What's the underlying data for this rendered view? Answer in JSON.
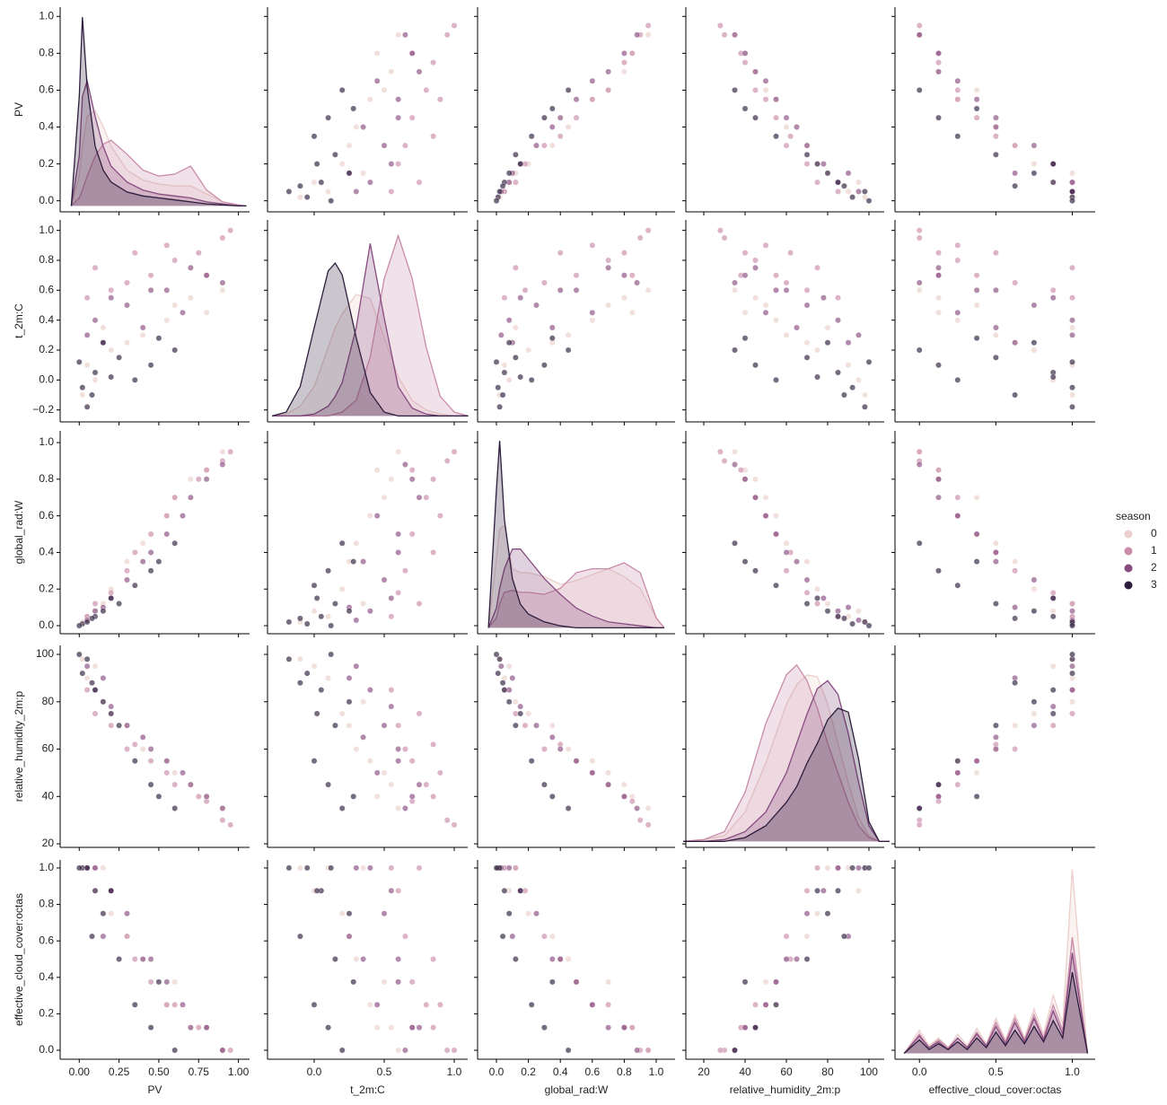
{
  "chart_data": {
    "type": "pairplot",
    "legend_title": "season",
    "variables": [
      {
        "name": "PV",
        "xlim": [
          -0.12,
          1.07
        ],
        "xticks": [
          {
            "value": 0,
            "label": "0.00"
          },
          {
            "value": 0.25,
            "label": "0.25"
          },
          {
            "value": 0.5,
            "label": "0.50"
          },
          {
            "value": 0.75,
            "label": "0.75"
          },
          {
            "value": 1,
            "label": "1.00"
          }
        ],
        "ylim": [
          -0.06,
          1.05
        ],
        "yticks": [
          {
            "value": 0,
            "label": "0.0"
          },
          {
            "value": 0.2,
            "label": "0.2"
          },
          {
            "value": 0.4,
            "label": "0.4"
          },
          {
            "value": 0.6,
            "label": "0.6"
          },
          {
            "value": 0.8,
            "label": "0.8"
          },
          {
            "value": 1,
            "label": "1.0"
          }
        ]
      },
      {
        "name": "t_2m:C",
        "xlim": [
          -0.333,
          1.096
        ],
        "xticks": [
          {
            "value": 0,
            "label": "0.0"
          },
          {
            "value": 0.5,
            "label": "0.5"
          },
          {
            "value": 1,
            "label": "1.0"
          }
        ],
        "ylim": [
          -0.28,
          1.07
        ],
        "yticks": [
          {
            "value": -0.2,
            "label": "−0.2"
          },
          {
            "value": 0,
            "label": "0.0"
          },
          {
            "value": 0.2,
            "label": "0.2"
          },
          {
            "value": 0.4,
            "label": "0.4"
          },
          {
            "value": 0.6,
            "label": "0.6"
          },
          {
            "value": 0.8,
            "label": "0.8"
          },
          {
            "value": 1,
            "label": "1.0"
          }
        ]
      },
      {
        "name": "global_rad:W",
        "xlim": [
          -0.118,
          1.118
        ],
        "xticks": [
          {
            "value": 0,
            "label": "0.0"
          },
          {
            "value": 0.2,
            "label": "0.2"
          },
          {
            "value": 0.4,
            "label": "0.4"
          },
          {
            "value": 0.6,
            "label": "0.6"
          },
          {
            "value": 0.8,
            "label": "0.8"
          },
          {
            "value": 1,
            "label": "1.0"
          }
        ],
        "ylim": [
          -0.044,
          1.064
        ],
        "yticks": [
          {
            "value": 0,
            "label": "0.0"
          },
          {
            "value": 0.2,
            "label": "0.2"
          },
          {
            "value": 0.4,
            "label": "0.4"
          },
          {
            "value": 0.6,
            "label": "0.6"
          },
          {
            "value": 0.8,
            "label": "0.8"
          },
          {
            "value": 1,
            "label": "1.0"
          }
        ]
      },
      {
        "name": "relative_humidity_2m:p",
        "xlim": [
          11.3,
          107.4
        ],
        "xticks": [
          20,
          40,
          60,
          80,
          100
        ],
        "ylim": [
          18.5,
          103.8
        ],
        "yticks": [
          20,
          40,
          60,
          80,
          100
        ]
      },
      {
        "name": "effective_cloud_cover:octas",
        "xlim": [
          -0.16,
          1.15
        ],
        "xticks": [
          {
            "value": 0,
            "label": "0.0"
          },
          {
            "value": 0.5,
            "label": "0.5"
          },
          {
            "value": 1,
            "label": "1.0"
          }
        ],
        "ylim": [
          -0.049,
          1.044
        ],
        "yticks": [
          {
            "value": 0,
            "label": "0.0"
          },
          {
            "value": 0.2,
            "label": "0.2"
          },
          {
            "value": 0.4,
            "label": "0.4"
          },
          {
            "value": 0.6,
            "label": "0.6"
          },
          {
            "value": 0.8,
            "label": "0.8"
          },
          {
            "value": 1,
            "label": "1.0"
          }
        ]
      }
    ],
    "series": [
      {
        "name": "0",
        "color": "#ebcfca",
        "values": [
          [
            0.05,
            0.1,
            0.05,
            90,
            1.0
          ],
          [
            0.4,
            0.3,
            0.45,
            60,
            0.5
          ],
          [
            0.7,
            0.55,
            0.8,
            45,
            0.125
          ],
          [
            0.2,
            0.2,
            0.2,
            75,
            0.75
          ],
          [
            0.9,
            0.6,
            0.95,
            35,
            0.0
          ],
          [
            0.55,
            0.4,
            0.6,
            55,
            0.25
          ],
          [
            0.1,
            0.0,
            0.08,
            95,
            0.875
          ],
          [
            0.3,
            0.25,
            0.35,
            70,
            0.625
          ],
          [
            0.8,
            0.45,
            0.85,
            40,
            0.125
          ],
          [
            0.15,
            0.35,
            0.12,
            80,
            1.0
          ],
          [
            0.6,
            0.5,
            0.7,
            50,
            0.375
          ],
          [
            0.02,
            -0.1,
            0.02,
            98,
            1.0
          ]
        ]
      },
      {
        "name": "1",
        "color": "#c98ba9",
        "values": [
          [
            0.6,
            0.8,
            0.7,
            45,
            0.25
          ],
          [
            0.9,
            0.95,
            0.9,
            30,
            0.0
          ],
          [
            0.3,
            0.65,
            0.3,
            60,
            0.625
          ],
          [
            0.05,
            0.55,
            0.05,
            85,
            1.0
          ],
          [
            0.75,
            0.85,
            0.8,
            40,
            0.125
          ],
          [
            0.45,
            0.7,
            0.5,
            55,
            0.375
          ],
          [
            0.95,
            1.0,
            0.95,
            28,
            0.0
          ],
          [
            0.2,
            0.6,
            0.18,
            70,
            0.875
          ],
          [
            0.55,
            0.9,
            0.6,
            50,
            0.25
          ],
          [
            0.1,
            0.75,
            0.12,
            75,
            1.0
          ],
          [
            0.8,
            0.7,
            0.85,
            38,
            0.125
          ],
          [
            0.35,
            0.85,
            0.4,
            62,
            0.5
          ]
        ]
      },
      {
        "name": "2",
        "color": "#874b80",
        "values": [
          [
            0.1,
            0.4,
            0.08,
            85,
            1.0
          ],
          [
            0.3,
            0.5,
            0.25,
            70,
            0.75
          ],
          [
            0.55,
            0.6,
            0.5,
            55,
            0.375
          ],
          [
            0.8,
            0.7,
            0.8,
            40,
            0.125
          ],
          [
            0.05,
            0.3,
            0.03,
            95,
            1.0
          ],
          [
            0.65,
            0.45,
            0.6,
            50,
            0.25
          ],
          [
            0.2,
            0.55,
            0.15,
            78,
            0.875
          ],
          [
            0.4,
            0.35,
            0.35,
            65,
            0.5
          ],
          [
            0.9,
            0.65,
            0.88,
            35,
            0.0
          ],
          [
            0.15,
            0.25,
            0.1,
            90,
            0.625
          ],
          [
            0.7,
            0.75,
            0.7,
            45,
            0.125
          ],
          [
            0.45,
            0.6,
            0.4,
            60,
            0.5
          ]
        ]
      },
      {
        "name": "3",
        "color": "#2c1d3c",
        "values": [
          [
            0.02,
            -0.05,
            0.01,
            92,
            1.0
          ],
          [
            0.1,
            0.05,
            0.05,
            85,
            0.875
          ],
          [
            0.25,
            0.15,
            0.12,
            70,
            0.5
          ],
          [
            0.45,
            0.1,
            0.3,
            45,
            0.125
          ],
          [
            0.6,
            0.2,
            0.45,
            35,
            0.0
          ],
          [
            0.05,
            -0.18,
            0.02,
            98,
            1.0
          ],
          [
            0.15,
            0.25,
            0.08,
            80,
            0.75
          ],
          [
            0.35,
            0.0,
            0.22,
            55,
            0.25
          ],
          [
            0.0,
            0.12,
            0.0,
            100,
            1.0
          ],
          [
            0.08,
            -0.1,
            0.04,
            88,
            0.625
          ],
          [
            0.5,
            0.28,
            0.35,
            40,
            0.375
          ],
          [
            0.2,
            0.02,
            0.15,
            75,
            0.875
          ]
        ]
      }
    ],
    "kde": [
      {
        "ylim": [
          -0.03,
          1.0
        ],
        "x": [
          -0.05,
          0,
          0.02,
          0.05,
          0.1,
          0.15,
          0.2,
          0.3,
          0.4,
          0.5,
          0.6,
          0.7,
          0.8,
          0.9,
          1.0,
          1.05
        ],
        "series": [
          [
            0,
            0.15,
            0.3,
            0.45,
            0.48,
            0.4,
            0.3,
            0.18,
            0.13,
            0.11,
            0.1,
            0.1,
            0.06,
            0.02,
            0,
            0
          ],
          [
            0,
            0.04,
            0.08,
            0.15,
            0.25,
            0.31,
            0.33,
            0.26,
            0.18,
            0.15,
            0.16,
            0.2,
            0.08,
            0.02,
            0.005,
            0
          ],
          [
            0,
            0.25,
            0.55,
            0.63,
            0.45,
            0.3,
            0.2,
            0.12,
            0.08,
            0.06,
            0.05,
            0.04,
            0.02,
            0.01,
            0,
            0
          ],
          [
            0,
            0.55,
            0.95,
            0.6,
            0.3,
            0.18,
            0.12,
            0.07,
            0.05,
            0.04,
            0.03,
            0.02,
            0.01,
            0.005,
            0,
            0
          ]
        ]
      },
      {
        "ylim": [
          -0.03,
          1.0
        ],
        "x": [
          -0.3,
          -0.2,
          -0.1,
          0,
          0.1,
          0.15,
          0.2,
          0.3,
          0.4,
          0.5,
          0.6,
          0.7,
          0.8,
          0.9,
          1.0,
          1.1
        ],
        "series": [
          [
            0,
            0.01,
            0.05,
            0.15,
            0.35,
            0.45,
            0.52,
            0.62,
            0.6,
            0.4,
            0.2,
            0.08,
            0.03,
            0.01,
            0,
            0
          ],
          [
            0,
            0,
            0,
            0,
            0,
            0.01,
            0.02,
            0.08,
            0.3,
            0.7,
            0.92,
            0.7,
            0.35,
            0.1,
            0.02,
            0
          ],
          [
            0,
            0,
            0,
            0.01,
            0.05,
            0.1,
            0.17,
            0.45,
            0.88,
            0.5,
            0.15,
            0.04,
            0.01,
            0,
            0,
            0
          ],
          [
            0,
            0.02,
            0.15,
            0.45,
            0.74,
            0.78,
            0.72,
            0.4,
            0.12,
            0.02,
            0,
            0,
            0,
            0,
            0,
            0
          ]
        ]
      },
      {
        "ylim": [
          -0.03,
          1.0
        ],
        "x": [
          -0.05,
          0,
          0.02,
          0.05,
          0.1,
          0.15,
          0.2,
          0.3,
          0.4,
          0.5,
          0.6,
          0.7,
          0.8,
          0.9,
          1.0,
          1.05
        ],
        "series": [
          [
            0,
            0.35,
            0.5,
            0.52,
            0.3,
            0.28,
            0.28,
            0.26,
            0.22,
            0.24,
            0.27,
            0.3,
            0.26,
            0.2,
            0.05,
            0
          ],
          [
            0,
            0.05,
            0.12,
            0.18,
            0.19,
            0.18,
            0.18,
            0.17,
            0.2,
            0.28,
            0.3,
            0.3,
            0.33,
            0.28,
            0.05,
            0
          ],
          [
            0,
            0.1,
            0.2,
            0.3,
            0.4,
            0.4,
            0.35,
            0.25,
            0.17,
            0.1,
            0.06,
            0.03,
            0.02,
            0.01,
            0,
            0
          ],
          [
            0,
            0.7,
            0.95,
            0.55,
            0.25,
            0.12,
            0.07,
            0.03,
            0.01,
            0,
            0,
            0,
            0,
            0,
            0,
            0
          ]
        ]
      },
      {
        "ylim": [
          -0.03,
          1.0
        ],
        "x": [
          10,
          20,
          30,
          40,
          50,
          60,
          65,
          70,
          75,
          80,
          85,
          90,
          95,
          100,
          105,
          110
        ],
        "series": [
          [
            0,
            0.01,
            0.03,
            0.15,
            0.4,
            0.7,
            0.8,
            0.85,
            0.84,
            0.7,
            0.5,
            0.3,
            0.12,
            0.03,
            0,
            0
          ],
          [
            0,
            0.01,
            0.05,
            0.25,
            0.6,
            0.85,
            0.9,
            0.82,
            0.68,
            0.5,
            0.35,
            0.2,
            0.08,
            0.02,
            0,
            0
          ],
          [
            0,
            0,
            0.01,
            0.05,
            0.15,
            0.35,
            0.5,
            0.65,
            0.78,
            0.82,
            0.75,
            0.55,
            0.3,
            0.08,
            0,
            0
          ],
          [
            0,
            0,
            0,
            0.02,
            0.08,
            0.2,
            0.28,
            0.4,
            0.5,
            0.62,
            0.68,
            0.66,
            0.42,
            0.1,
            0,
            0
          ]
        ]
      },
      {
        "ylim": [
          -0.03,
          1.0
        ],
        "x": [
          -0.1,
          0,
          0.0625,
          0.125,
          0.1875,
          0.25,
          0.3125,
          0.375,
          0.4375,
          0.5,
          0.5625,
          0.625,
          0.6875,
          0.75,
          0.8125,
          0.875,
          0.9375,
          1.0,
          1.1
        ],
        "series": [
          [
            0,
            0.12,
            0.04,
            0.08,
            0.03,
            0.1,
            0.04,
            0.13,
            0.05,
            0.18,
            0.07,
            0.2,
            0.08,
            0.23,
            0.1,
            0.3,
            0.15,
            0.95,
            0
          ],
          [
            0,
            0.1,
            0.03,
            0.07,
            0.03,
            0.08,
            0.03,
            0.11,
            0.04,
            0.16,
            0.06,
            0.18,
            0.07,
            0.2,
            0.08,
            0.25,
            0.12,
            0.6,
            0
          ],
          [
            0,
            0.09,
            0.03,
            0.06,
            0.02,
            0.08,
            0.03,
            0.1,
            0.04,
            0.14,
            0.05,
            0.16,
            0.06,
            0.18,
            0.07,
            0.22,
            0.1,
            0.52,
            0
          ],
          [
            0,
            0.07,
            0.02,
            0.05,
            0.02,
            0.06,
            0.02,
            0.08,
            0.03,
            0.11,
            0.04,
            0.12,
            0.05,
            0.14,
            0.06,
            0.17,
            0.08,
            0.42,
            0
          ]
        ]
      }
    ]
  }
}
